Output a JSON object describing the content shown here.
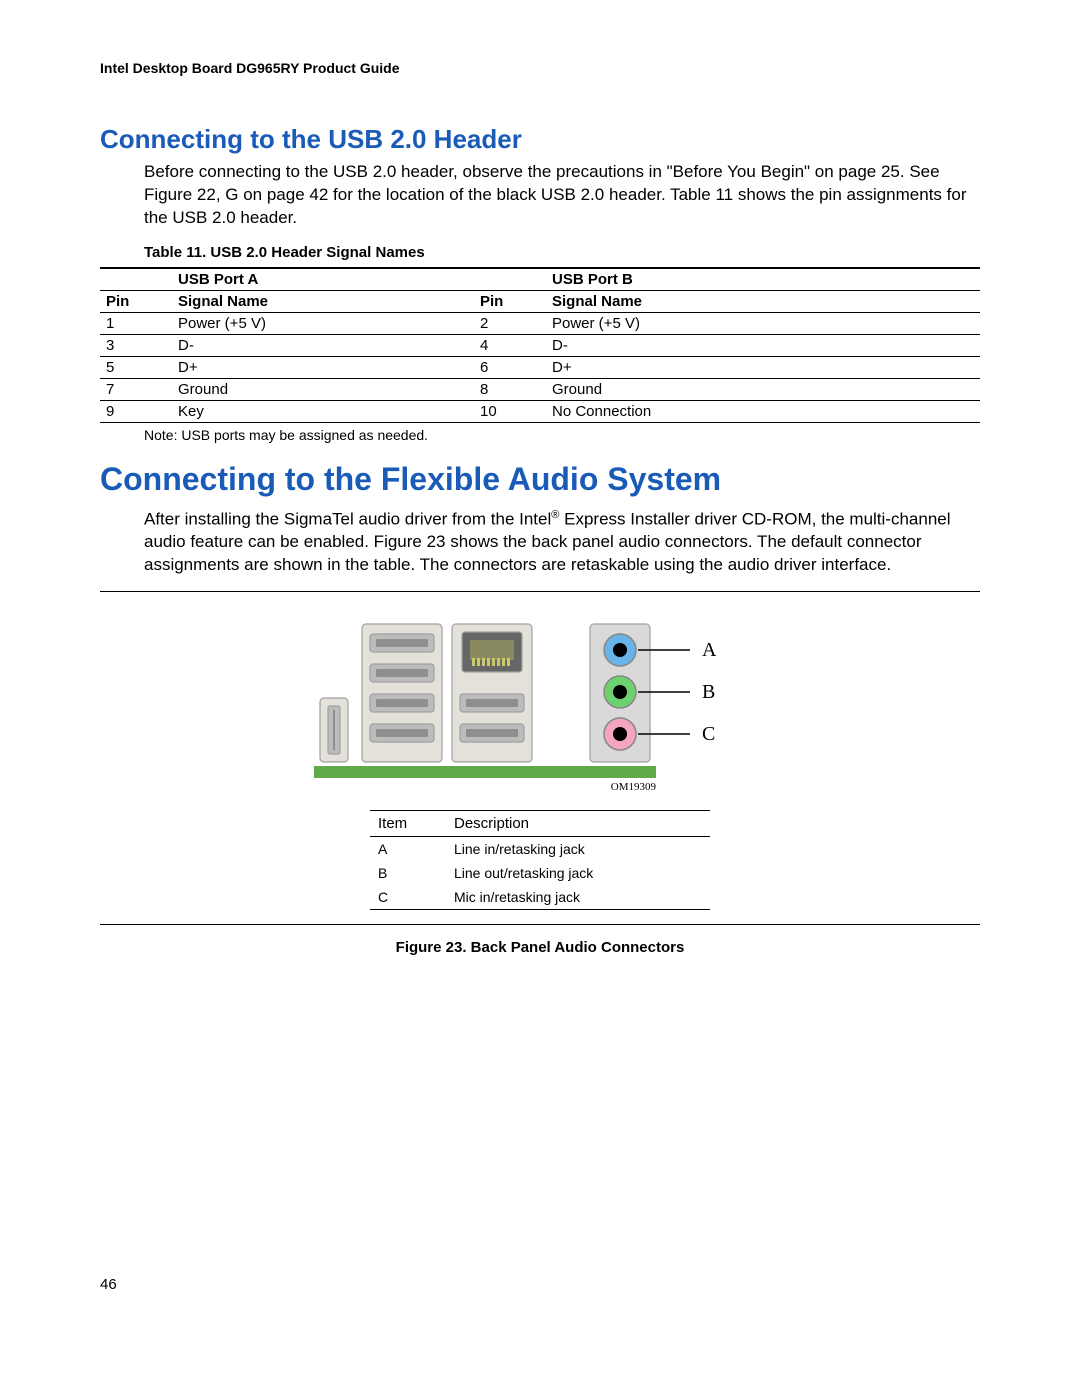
{
  "header": {
    "title": "Intel Desktop Board DG965RY Product Guide"
  },
  "section1": {
    "heading": "Connecting to the USB 2.0 Header",
    "para": "Before connecting to the USB 2.0 header, observe the precautions in \"Before You Begin\" on page 25.  See Figure 22, G on page 42 for the location of the black USB 2.0 header.  Table 11 shows the pin assignments for the USB 2.0 header.",
    "table_caption": "Table 11. USB 2.0 Header Signal Names",
    "table": {
      "group_a": "USB Port A",
      "group_b": "USB Port B",
      "head_pin": "Pin",
      "head_sig": "Signal Name",
      "rows": [
        {
          "a_pin": "1",
          "a_sig": "Power (+5 V)",
          "b_pin": "2",
          "b_sig": "Power (+5 V)"
        },
        {
          "a_pin": "3",
          "a_sig": "D-",
          "b_pin": "4",
          "b_sig": "D-"
        },
        {
          "a_pin": "5",
          "a_sig": "D+",
          "b_pin": "6",
          "b_sig": "D+"
        },
        {
          "a_pin": "7",
          "a_sig": "Ground",
          "b_pin": "8",
          "b_sig": "Ground"
        },
        {
          "a_pin": "9",
          "a_sig": "Key",
          "b_pin": "10",
          "b_sig": "No Connection"
        }
      ]
    },
    "note": "Note:  USB ports may be assigned as needed."
  },
  "section2": {
    "heading": "Connecting to the Flexible Audio System",
    "para_pre": "After installing the SigmaTel audio driver from the Intel",
    "para_post": " Express Installer driver CD-ROM, the multi-channel audio feature can be enabled.  Figure 23 shows the back panel audio connectors.  The default connector assignments are shown in the table.  The connectors are retaskable using the audio driver interface.",
    "figure": {
      "label_a": "A",
      "label_b": "B",
      "label_c": "C",
      "om": "OM19309",
      "colors": {
        "panel_bg": "#e3e1d9",
        "panel_stroke": "#a0a0a0",
        "usb_fill": "#bcbcbc",
        "usb_slot": "#8f8f8f",
        "rj_fill": "#666666",
        "rj_inner": "#8a8a61",
        "jack_panel": "#d9d9d9",
        "jack_blue": "#68b4e8",
        "jack_green": "#6fd06f",
        "jack_pink": "#f4a6c0",
        "jack_center": "#000000",
        "pcb": "#5faa4a",
        "line": "#000000"
      },
      "desc_head_item": "Item",
      "desc_head_desc": "Description",
      "desc_rows": [
        {
          "item": "A",
          "desc": "Line in/retasking jack"
        },
        {
          "item": "B",
          "desc": "Line out/retasking jack"
        },
        {
          "item": "C",
          "desc": "Mic in/retasking jack"
        }
      ],
      "caption": "Figure 23.  Back Panel Audio Connectors"
    }
  },
  "page_number": "46"
}
